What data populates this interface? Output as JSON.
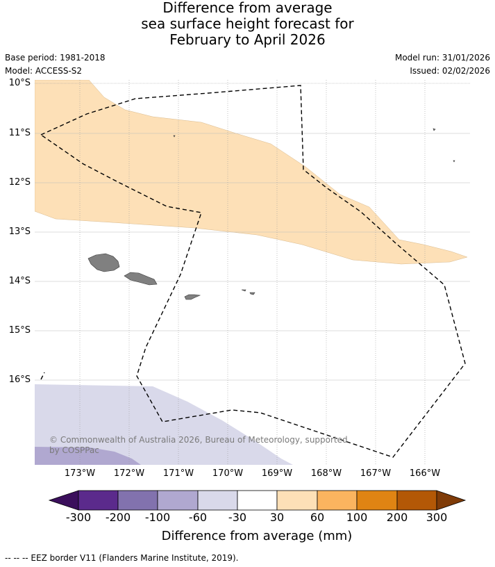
{
  "title": {
    "line1": "Difference from average",
    "line2": "sea surface height forecast for",
    "line3": "February to April 2026"
  },
  "meta": {
    "base_period": "Base period: 1981-2018",
    "model": "Model: ACCESS-S2",
    "model_run": "Model run: 31/01/2026",
    "issued": "Issued: 02/02/2026"
  },
  "map": {
    "lat_labels": [
      "10°S",
      "11°S",
      "12°S",
      "13°S",
      "14°S",
      "15°S",
      "16°S"
    ],
    "lon_labels": [
      "173°W",
      "172°W",
      "171°W",
      "170°W",
      "169°W",
      "168°W",
      "167°W",
      "166°W"
    ],
    "copyright": "© Commonwealth of Australia 2026, Bureau of Meteorology, supported by COSPPac",
    "land_color": "#808080",
    "eez_style": "dashed"
  },
  "colorbar": {
    "title": "Difference from average (mm)",
    "labels": [
      "-300",
      "-200",
      "-100",
      "-60",
      "-30",
      "30",
      "60",
      "100",
      "200",
      "300"
    ],
    "colors": [
      "#3b0f5c",
      "#5b2a8c",
      "#8272ae",
      "#b0a8d0",
      "#d9d9ea",
      "#ffffff",
      "#fde0b7",
      "#fbb45f",
      "#e08413",
      "#b35806",
      "#7f3b08"
    ]
  },
  "footer": "--  --  -- EEZ border V11 (Flanders Marine Institute, 2019)."
}
